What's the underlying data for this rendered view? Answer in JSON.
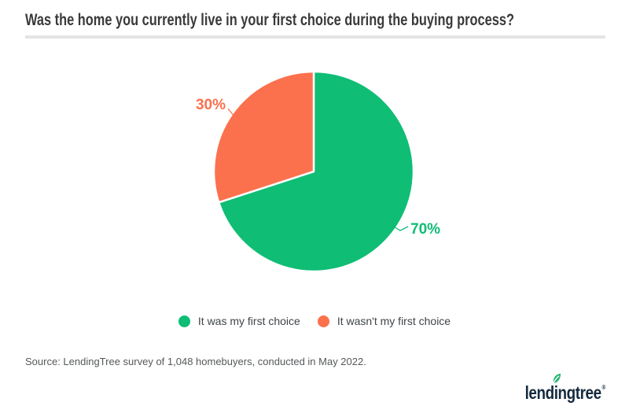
{
  "header": {
    "title": "Was the home you currently live in your first choice during the buying process?"
  },
  "chart_data": {
    "type": "pie",
    "title": "Was the home you currently live in your first choice during the buying process?",
    "unit": "percent",
    "start_angle_deg": 0,
    "direction": "clockwise",
    "legend_position": "bottom",
    "slices": [
      {
        "label": "It was my first choice",
        "value": 70,
        "display": "70%",
        "color": "#0FBD75"
      },
      {
        "label": "It wasn't my first choice",
        "value": 30,
        "display": "30%",
        "color": "#FB714D"
      }
    ]
  },
  "source": {
    "text": "Source: LendingTree survey of 1,048 homebuyers, conducted in May 2022."
  },
  "brand": {
    "name": "lendingtree",
    "wordmark_start": "lend",
    "wordmark_i": "i",
    "wordmark_end": "ngtree",
    "registered": "®",
    "navy": "#14293D",
    "leaf_green": "#2BB673"
  }
}
